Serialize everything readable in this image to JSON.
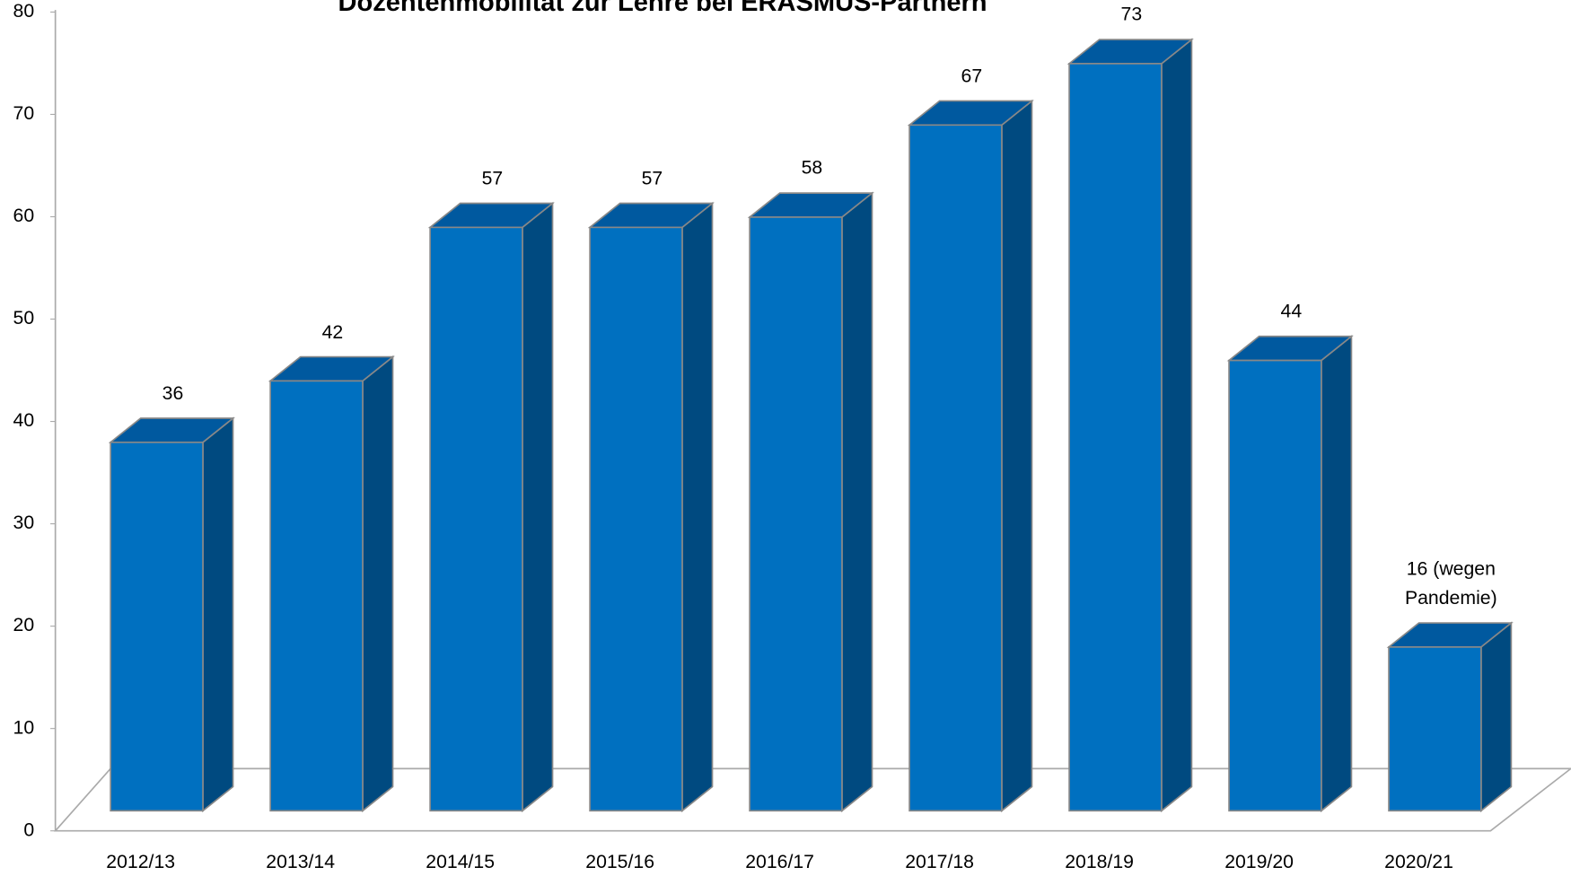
{
  "chart_data": {
    "type": "bar3d",
    "title": "Dozentenmobilität  zur Lehre bei ERASMUS-Partnern",
    "categories": [
      "2012/13",
      "2013/14",
      "2014/15",
      "2015/16",
      "2016/17",
      "2017/18",
      "2018/19",
      "2019/20",
      "2020/21"
    ],
    "values": [
      36,
      42,
      57,
      57,
      58,
      67,
      73,
      44,
      16
    ],
    "value_labels": [
      "36",
      "42",
      "57",
      "57",
      "58",
      "67",
      "73",
      "44",
      "16 (wegen Pandemie)"
    ],
    "color": "#0070c0",
    "ylim": [
      0,
      80
    ],
    "yticks": [
      0,
      10,
      20,
      30,
      40,
      50,
      60,
      70,
      80
    ],
    "grid": false
  }
}
